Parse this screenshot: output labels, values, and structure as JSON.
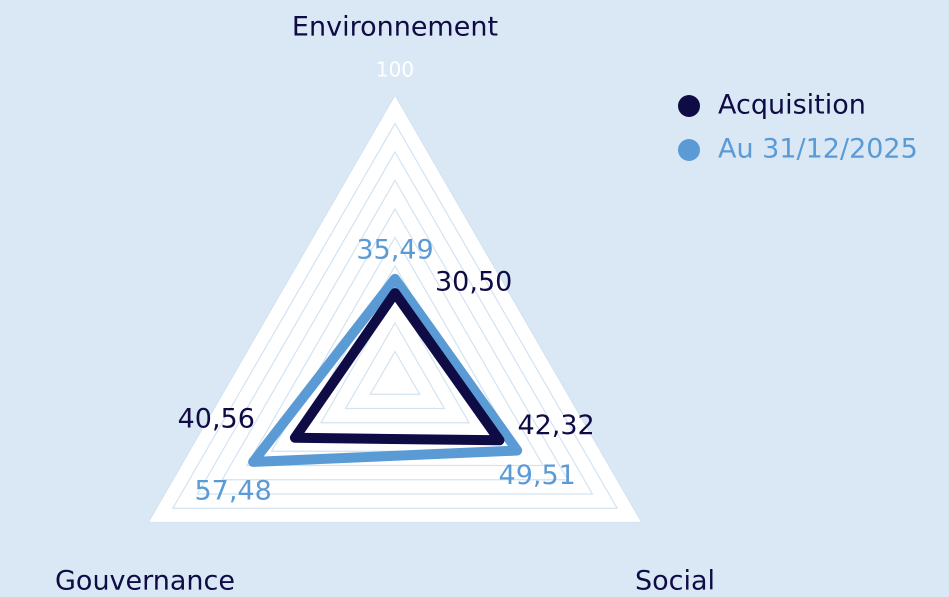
{
  "chart_data": {
    "type": "radar",
    "categories": [
      "Environnement",
      "Social",
      "Gouvernance"
    ],
    "series": [
      {
        "name": "Acquisition",
        "color": "#0f0c45",
        "values": [
          30.5,
          42.32,
          40.56
        ],
        "value_labels": [
          "30,50",
          "42,32",
          "40,56"
        ]
      },
      {
        "name": "Au 31/12/2025",
        "color": "#5b9bd5",
        "values": [
          35.49,
          49.51,
          57.48
        ],
        "value_labels": [
          "35,49",
          "49,51",
          "57,48"
        ]
      }
    ],
    "rlim": [
      0,
      100
    ],
    "rticks": [
      100
    ],
    "grid": true,
    "legend": "upper right"
  }
}
